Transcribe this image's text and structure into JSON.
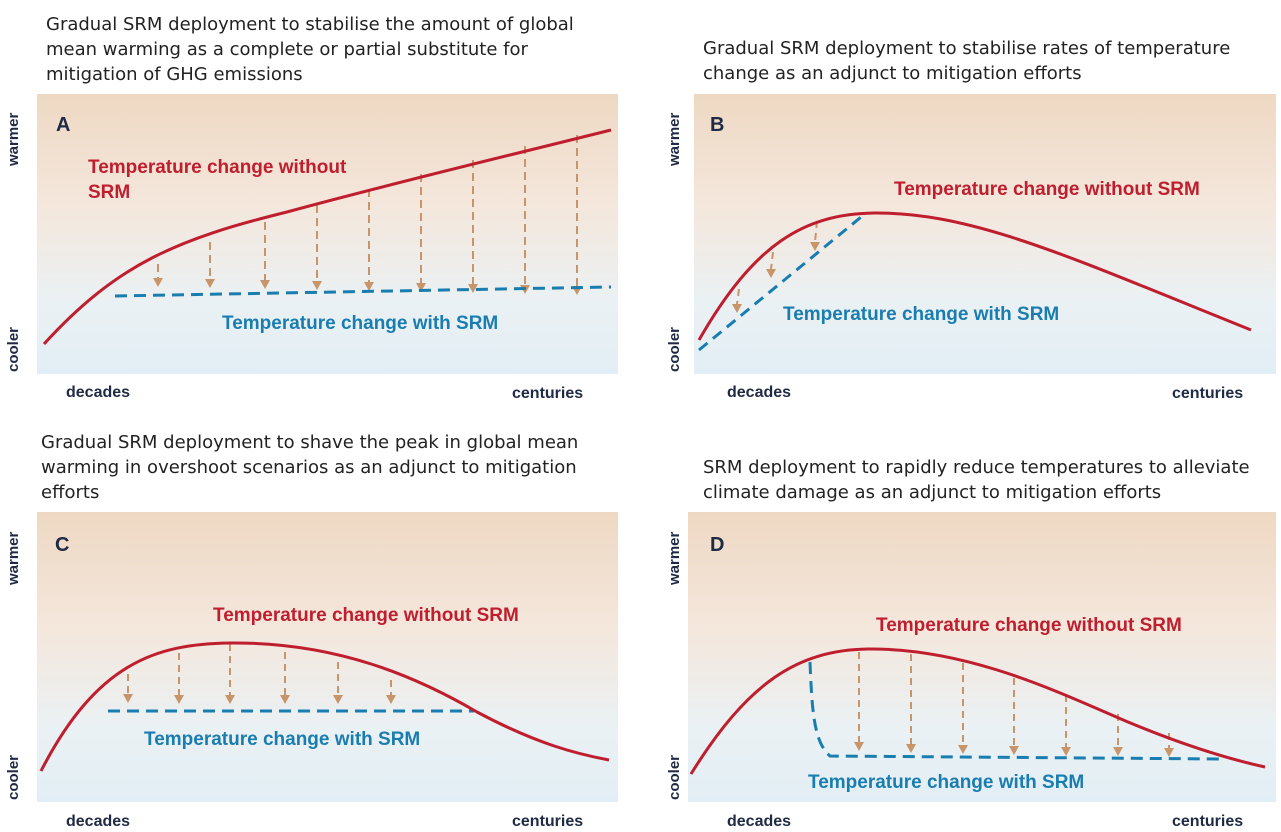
{
  "panels": {
    "a": {
      "title": "Gradual SRM deployment to stabilise the amount of global mean warming as a complete or partial substitute for mitigation of GHG emissions",
      "letter": "A",
      "warmer": "warmer",
      "cooler": "cooler",
      "decades": "decades",
      "centuries": "centuries",
      "without": "Temperature change without SRM",
      "with": "Temperature change with SRM"
    },
    "b": {
      "title": "Gradual SRM deployment to stabilise rates of temperature change as an adjunct to mitigation efforts",
      "letter": "B",
      "warmer": "warmer",
      "cooler": "cooler",
      "decades": "decades",
      "centuries": "centuries",
      "without": "Temperature change without SRM",
      "with": "Temperature change with SRM"
    },
    "c": {
      "title": "Gradual SRM deployment to shave the peak in global mean warming in overshoot scenarios as an adjunct to mitigation efforts",
      "letter": "C",
      "warmer": "warmer",
      "cooler": "cooler",
      "decades": "decades",
      "centuries": "centuries",
      "without": "Temperature change without SRM",
      "with": "Temperature change with SRM"
    },
    "d": {
      "title": "SRM deployment to rapidly reduce temperatures to alleviate climate damage as an adjunct to mitigation efforts",
      "letter": "D",
      "warmer": "warmer",
      "cooler": "cooler",
      "decades": "decades",
      "centuries": "centuries",
      "without": "Temperature change without SRM",
      "with": "Temperature change with SRM"
    }
  },
  "colors": {
    "without_srm": "#bf1e2e",
    "with_srm": "#1a7db0",
    "arrow": "#c8956a"
  }
}
